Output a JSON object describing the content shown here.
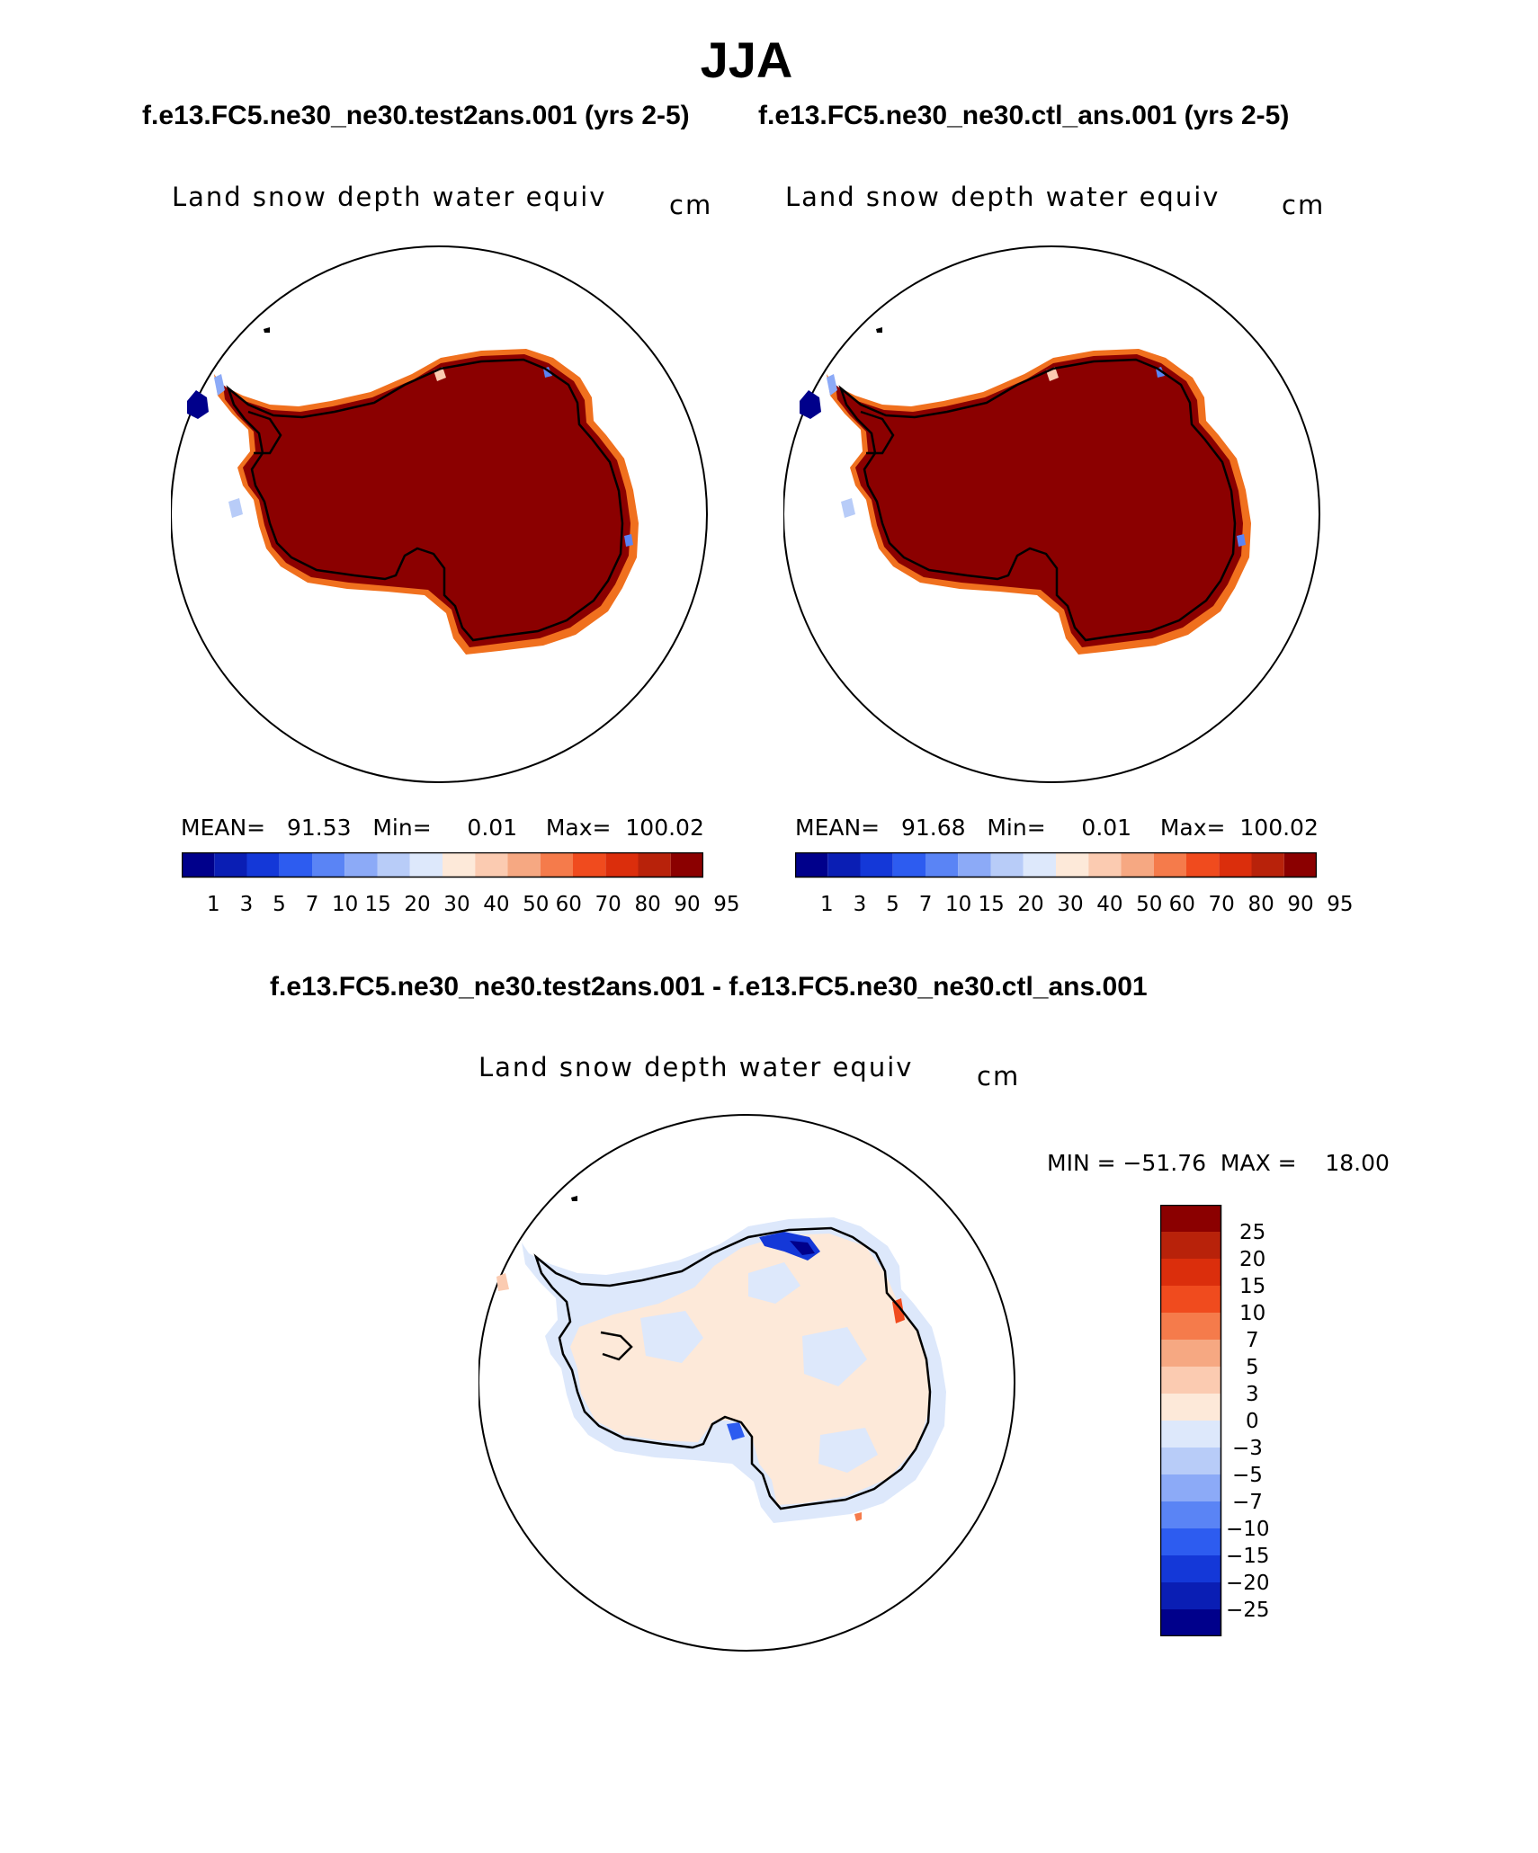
{
  "season": "JJA",
  "case_title": "f.e13.FC5.ne30_ne30.test2ans.001 (yrs 2-5)",
  "control_title": "f.e13.FC5.ne30_ne30.ctl_ans.001 (yrs 2-5)",
  "diff_title": "f.e13.FC5.ne30_ne30.test2ans.001 - f.e13.FC5.ne30_ne30.ctl_ans.001",
  "panels": {
    "case": {
      "variable": "Land snow depth water equiv",
      "units": "cm",
      "stats": "MEAN=   91.53   Min=     0.01    Max=  100.02",
      "colorbar_labels": "1   3   5   7  10 15  20  30  40  50 60  70  80  90  95"
    },
    "control": {
      "variable": "Land snow depth water equiv",
      "units": "cm",
      "stats": "MEAN=   91.68   Min=     0.01    Max=  100.02",
      "colorbar_labels": "1   3   5   7  10 15  20  30  40  50 60  70  80  90  95"
    },
    "difference": {
      "variable": "Land snow depth water equiv",
      "units": "cm",
      "stats": "MIN = −51.76  MAX =    18.00",
      "colorbar_ticks": [
        "25",
        "20",
        "15",
        "10",
        "7",
        "5",
        "3",
        "0",
        "−3",
        "−5",
        "−7",
        "−10",
        "−15",
        "−20",
        "−25"
      ]
    }
  },
  "colors": {
    "field_palette": [
      "#00008b",
      "#0a1eb4",
      "#1438d8",
      "#2d5cf0",
      "#5a84f5",
      "#8caaf7",
      "#b8ccf8",
      "#dde8fb",
      "#fde9d9",
      "#fbcbb1",
      "#f6a882",
      "#f57b4b",
      "#f04b1e",
      "#db2e0c",
      "#b8220a",
      "#8b0000"
    ],
    "diff_palette": [
      "#8b0000",
      "#b8220a",
      "#db2e0c",
      "#f04b1e",
      "#f57b4b",
      "#f6a882",
      "#fbcbb1",
      "#fde9d9",
      "#dde8fb",
      "#b8ccf8",
      "#8caaf7",
      "#5a84f5",
      "#2d5cf0",
      "#1438d8",
      "#0a1eb4",
      "#00008b"
    ]
  }
}
